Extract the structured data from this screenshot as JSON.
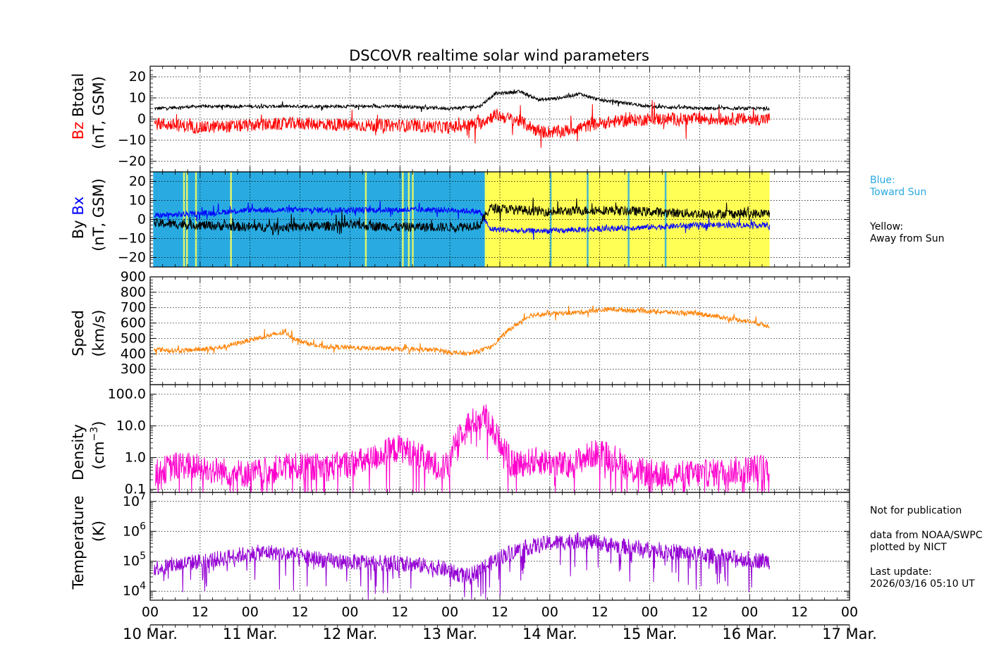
{
  "title": "DSCOVR realtime solar wind parameters",
  "colors": {
    "bz": "#ff0000",
    "btotal": "#000000",
    "bx": "#0000ff",
    "by": "#000000",
    "toward_sun": "#29abe2",
    "away_from_sun": "#ffff55",
    "speed": "#ff8000",
    "density": "#ff00cc",
    "temperature": "#9400d3"
  },
  "x_axis": {
    "hour_ticks": [
      "00",
      "12",
      "00",
      "12",
      "00",
      "12",
      "00",
      "12",
      "00",
      "12",
      "00",
      "12",
      "00",
      "12",
      "00"
    ],
    "date_labels": [
      "10 Mar.",
      "11 Mar.",
      "12 Mar.",
      "13 Mar.",
      "14 Mar.",
      "15 Mar.",
      "16 Mar.",
      "17 Mar."
    ]
  },
  "legend": {
    "blue_label": "Blue:",
    "blue_desc": "Toward Sun",
    "yellow_label": "Yellow:",
    "yellow_desc": "Away from Sun"
  },
  "notes": {
    "publication": "Not for publication",
    "source": "data from NOAA/SWPC",
    "plotted": "plotted by NICT",
    "update_label": "Last update:",
    "update_time": "2026/03/16 05:10 UT"
  },
  "panels_text": {
    "p1": {
      "y1a": "Bz",
      "y1b": "Btotal",
      "y2": "(nT, GSM)"
    },
    "p2": {
      "y1a": "By",
      "y1b": "Bx",
      "y2": "(nT, GSM)"
    },
    "p3": {
      "y1": "Speed",
      "y2": "(km/s)"
    },
    "p4": {
      "y1": "Density",
      "y2": "(cm",
      "y2sup": "−3",
      "y2end": ")"
    },
    "p5": {
      "y1": "Temperature",
      "y2": "(K)"
    }
  },
  "chart_data": [
    {
      "type": "line",
      "panel": "magnetic field Bz/Btotal",
      "ylabel": "Bz Btotal (nT, GSM)",
      "ylim": [
        -25,
        25
      ],
      "yticks": [
        20,
        10,
        0,
        -10,
        -20
      ],
      "ytick_labels": [
        "20",
        "10",
        "0",
        "−10",
        "−20"
      ],
      "x_days": [
        0,
        7
      ],
      "grid": true,
      "series": [
        {
          "name": "Btotal",
          "x": [
            0.04,
            0.5,
            1.0,
            1.5,
            2.0,
            2.5,
            3.0,
            3.3,
            3.45,
            3.7,
            3.9,
            4.1,
            4.3,
            4.5,
            4.7,
            5.0,
            5.5,
            6.0,
            6.2
          ],
          "y": [
            5,
            6,
            6,
            6,
            6,
            6,
            5,
            6,
            12,
            13,
            9,
            10,
            12,
            9,
            8,
            6,
            5,
            5,
            5
          ]
        },
        {
          "name": "Bz",
          "x": [
            0.04,
            0.5,
            1.0,
            1.5,
            2.0,
            2.5,
            3.0,
            3.3,
            3.45,
            3.7,
            3.9,
            4.1,
            4.3,
            4.5,
            4.7,
            5.0,
            5.5,
            6.0,
            6.2
          ],
          "y": [
            -2,
            -4,
            -3,
            -2,
            -3,
            -3,
            -4,
            -2,
            2,
            -1,
            -6,
            -6,
            -4,
            -2,
            -1,
            0,
            0,
            0,
            0
          ]
        }
      ]
    },
    {
      "type": "line",
      "panel": "magnetic field Bx/By with sector polarity",
      "ylabel": "By Bx (nT, GSM)",
      "ylim": [
        -25,
        25
      ],
      "yticks": [
        20,
        10,
        0,
        -10,
        -20
      ],
      "ytick_labels": [
        "20",
        "10",
        "0",
        "−10",
        "−20"
      ],
      "x_days": [
        0,
        7
      ],
      "grid": true,
      "sectors": [
        {
          "from": 0.03,
          "to": 3.35,
          "polarity": "toward"
        },
        {
          "from": 3.35,
          "to": 6.2,
          "polarity": "away"
        }
      ],
      "series": [
        {
          "name": "Bx",
          "x": [
            0.04,
            0.5,
            1.0,
            1.5,
            2.0,
            2.5,
            3.0,
            3.3,
            3.4,
            3.7,
            4.0,
            4.5,
            5.0,
            5.5,
            6.0,
            6.2
          ],
          "y": [
            2,
            3,
            5,
            5,
            5,
            5,
            5,
            4,
            -5,
            -6,
            -6,
            -5,
            -4,
            -3,
            -3,
            -3
          ]
        },
        {
          "name": "By",
          "x": [
            0.04,
            0.5,
            1.0,
            1.5,
            2.0,
            2.5,
            3.0,
            3.3,
            3.4,
            3.7,
            4.0,
            4.5,
            5.0,
            5.5,
            6.0,
            6.2
          ],
          "y": [
            -2,
            -3,
            -4,
            -4,
            -3,
            -4,
            -4,
            -3,
            6,
            5,
            4,
            5,
            4,
            3,
            3,
            3
          ]
        }
      ]
    },
    {
      "type": "line",
      "panel": "solar wind speed",
      "ylabel": "Speed (km/s)",
      "ylim": [
        200,
        900
      ],
      "yticks": [
        900,
        800,
        700,
        600,
        500,
        400,
        300
      ],
      "ytick_labels": [
        "900",
        "800",
        "700",
        "600",
        "500",
        "400",
        "300"
      ],
      "x_days": [
        0,
        7
      ],
      "grid": true,
      "series": [
        {
          "name": "Speed",
          "x": [
            0.04,
            0.3,
            0.7,
            1.0,
            1.2,
            1.35,
            1.5,
            1.7,
            2.0,
            2.5,
            2.9,
            3.0,
            3.2,
            3.4,
            3.6,
            3.8,
            4.0,
            4.3,
            4.6,
            4.9,
            5.2,
            5.5,
            6.0,
            6.2
          ],
          "y": [
            430,
            420,
            440,
            490,
            520,
            540,
            480,
            450,
            440,
            430,
            425,
            410,
            400,
            440,
            560,
            650,
            660,
            670,
            690,
            680,
            670,
            660,
            610,
            580
          ]
        }
      ]
    },
    {
      "type": "line",
      "panel": "proton density",
      "ylabel": "Density (cm−3)",
      "yscale": "log",
      "ylim": [
        0.08,
        200
      ],
      "yticks": [
        100,
        10,
        1,
        0.1
      ],
      "ytick_labels": [
        "100.0",
        "10.0",
        "1.0",
        "0.1"
      ],
      "x_days": [
        0,
        7
      ],
      "grid": true,
      "series": [
        {
          "name": "Density",
          "x": [
            0.05,
            0.3,
            0.6,
            1.0,
            1.4,
            1.8,
            2.2,
            2.5,
            2.8,
            3.0,
            3.2,
            3.35,
            3.45,
            3.6,
            3.9,
            4.2,
            4.5,
            4.8,
            5.1,
            5.5,
            5.9,
            6.2
          ],
          "y": [
            0.3,
            0.6,
            0.4,
            0.3,
            0.5,
            0.5,
            0.8,
            2.0,
            0.6,
            0.5,
            12,
            20,
            5,
            0.6,
            0.8,
            0.5,
            1.5,
            0.4,
            0.3,
            0.3,
            0.4,
            0.5
          ]
        }
      ]
    },
    {
      "type": "line",
      "panel": "proton temperature",
      "ylabel": "Temperature (K)",
      "yscale": "log",
      "ylim": [
        5000,
        20000000
      ],
      "yticks": [
        10000,
        100000,
        1000000,
        10000000
      ],
      "ytick_labels": [
        "10⁴",
        "10⁵",
        "10⁶",
        "10⁷"
      ],
      "x_days": [
        0,
        7
      ],
      "grid": true,
      "series": [
        {
          "name": "Temperature",
          "x": [
            0.04,
            0.3,
            0.7,
            1.0,
            1.2,
            1.5,
            1.8,
            2.2,
            2.6,
            2.9,
            3.05,
            3.2,
            3.4,
            3.7,
            4.0,
            4.3,
            4.6,
            5.0,
            5.4,
            5.8,
            6.2
          ],
          "y": [
            60000,
            80000,
            120000,
            180000,
            200000,
            150000,
            100000,
            90000,
            80000,
            60000,
            40000,
            30000,
            80000,
            250000,
            400000,
            500000,
            350000,
            250000,
            180000,
            130000,
            100000
          ]
        }
      ]
    }
  ]
}
